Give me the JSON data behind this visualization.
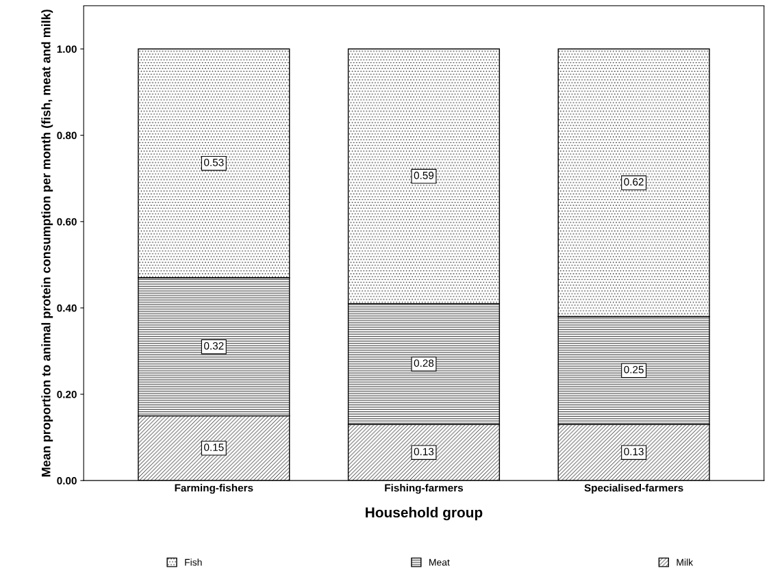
{
  "chart_data": {
    "type": "bar",
    "stacked": true,
    "xlabel": "Household group",
    "ylabel": "Mean proportion to animal protein consumption per month (fish, meat and milk)",
    "categories": [
      "Farming-fishers",
      "Fishing-farmers",
      "Specialised-farmers"
    ],
    "series": [
      {
        "name": "Milk",
        "color": "#000000",
        "values": [
          0.15,
          0.13,
          0.13
        ]
      },
      {
        "name": "Meat",
        "color": "#000000",
        "values": [
          0.32,
          0.28,
          0.25
        ]
      },
      {
        "name": "Fish",
        "color": "#000000",
        "values": [
          0.53,
          0.59,
          0.62
        ]
      }
    ],
    "ylim": [
      0,
      1.1
    ],
    "yticks": [
      {
        "value": 0,
        "label": "0.00"
      },
      {
        "value": 0.2,
        "label": "0.20"
      },
      {
        "value": 0.4,
        "label": "0.40"
      },
      {
        "value": 0.6,
        "label": "0.60"
      },
      {
        "value": 0.8,
        "label": "0.80"
      },
      {
        "value": 1.0,
        "label": "1.00"
      }
    ],
    "data_labels": true,
    "grid": false,
    "legend": "bottom"
  }
}
